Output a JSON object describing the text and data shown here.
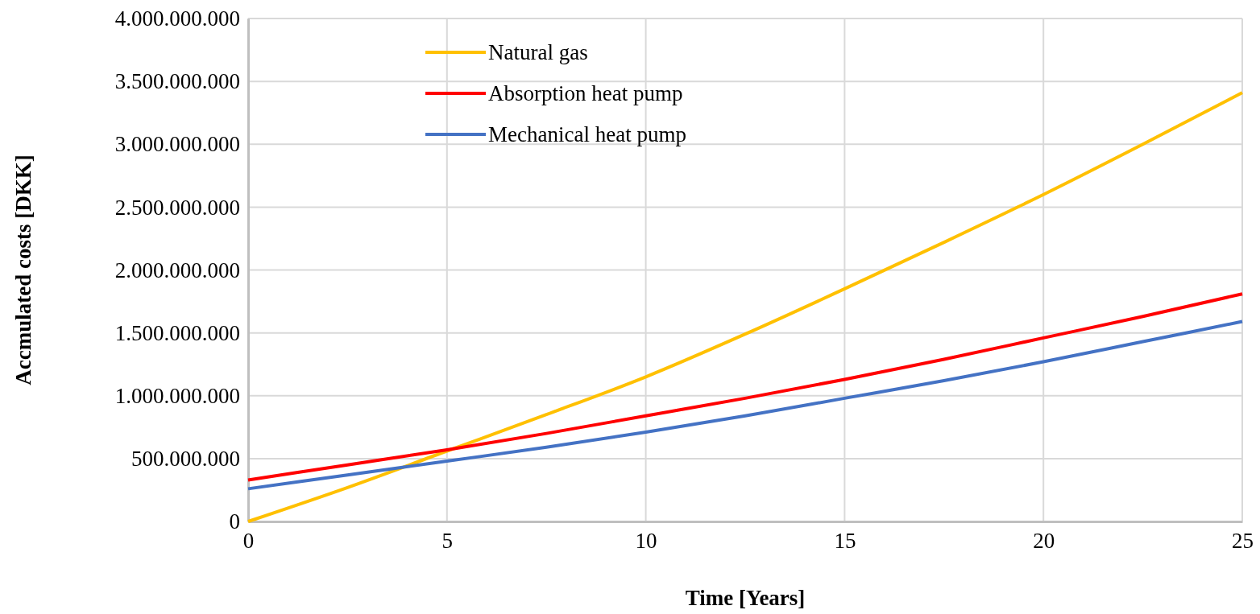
{
  "chart_data": {
    "type": "line",
    "xlabel": "Time [Years]",
    "ylabel": "Accmulated costs [DKK]",
    "x": [
      0,
      2.5,
      5,
      7.5,
      10,
      12.5,
      15,
      17.5,
      20,
      22.5,
      25
    ],
    "series": [
      {
        "name": "Natural gas",
        "color": "#ffc000",
        "values": [
          0,
          270000000,
          560000000,
          850000000,
          1150000000,
          1490000000,
          1850000000,
          2220000000,
          2600000000,
          3000000000,
          3410000000
        ]
      },
      {
        "name": "Absorption heat pump",
        "color": "#ff0000",
        "values": [
          330000000,
          450000000,
          570000000,
          700000000,
          840000000,
          980000000,
          1130000000,
          1290000000,
          1460000000,
          1630000000,
          1810000000
        ]
      },
      {
        "name": "Mechanical heat pump",
        "color": "#4472c4",
        "values": [
          260000000,
          370000000,
          480000000,
          590000000,
          710000000,
          840000000,
          980000000,
          1120000000,
          1270000000,
          1430000000,
          1590000000
        ]
      }
    ],
    "xlim": [
      0,
      25
    ],
    "xticks": [
      0,
      5,
      10,
      15,
      20,
      25
    ],
    "ylim": [
      0,
      4000000000
    ],
    "yticks": [
      {
        "value": 0,
        "label": "0"
      },
      {
        "value": 500000000,
        "label": "500.000.000"
      },
      {
        "value": 1000000000,
        "label": "1.000.000.000"
      },
      {
        "value": 1500000000,
        "label": "1.500.000.000"
      },
      {
        "value": 2000000000,
        "label": "2.000.000.000"
      },
      {
        "value": 2500000000,
        "label": "2.500.000.000"
      },
      {
        "value": 3000000000,
        "label": "3.000.000.000"
      },
      {
        "value": 3500000000,
        "label": "3.500.000.000"
      },
      {
        "value": 4000000000,
        "label": "4.000.000.000"
      }
    ],
    "grid": true,
    "legend": "top left",
    "marker": "none",
    "line_style": "solid"
  }
}
